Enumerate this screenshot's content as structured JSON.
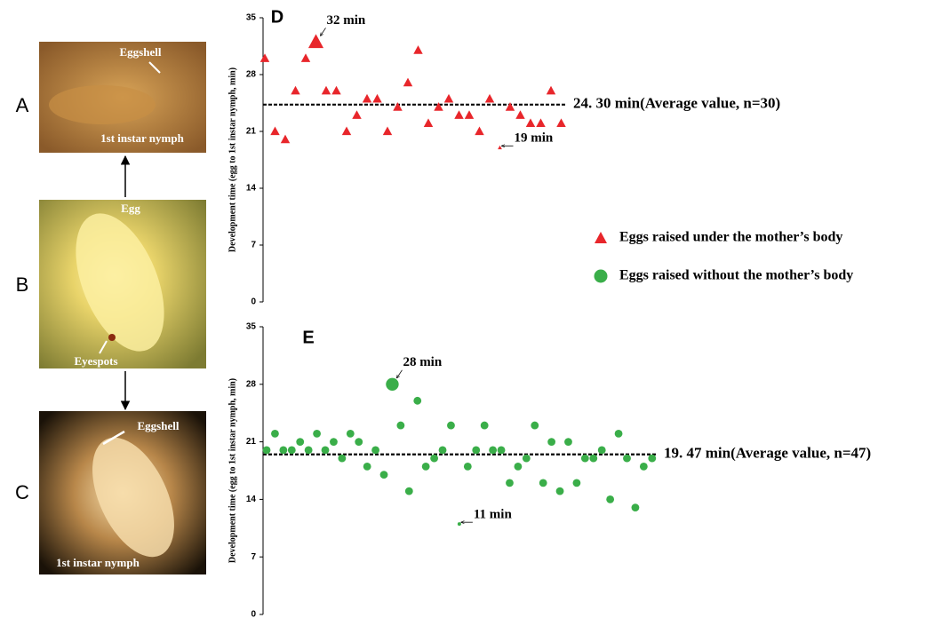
{
  "figure": {
    "panels": [
      {
        "letter": "A",
        "labels": [
          "Eggshell",
          "1st instar nymph"
        ]
      },
      {
        "letter": "B",
        "labels": [
          "Egg",
          "Eyespots"
        ]
      },
      {
        "letter": "C",
        "labels": [
          "Eggshell",
          "1st instar nymph"
        ]
      }
    ]
  },
  "chart_data": [
    {
      "type": "scatter",
      "title": "D",
      "ylabel": "Development time (egg to 1st instar nymph, min)",
      "ylim": [
        0,
        35
      ],
      "yticks": [
        0,
        7,
        14,
        21,
        28,
        35
      ],
      "series": [
        {
          "name": "Eggs raised under the mother’s body",
          "color": "#e8262b",
          "marker": "triangle",
          "values": [
            30,
            21,
            20,
            26,
            30,
            32,
            26,
            26,
            21,
            23,
            25,
            25,
            21,
            24,
            27,
            31,
            22,
            24,
            25,
            23,
            23,
            21,
            25,
            19,
            24,
            23,
            22,
            22,
            26,
            22
          ]
        }
      ],
      "mean": 24.3,
      "mean_label": "24. 30 min(Average value, n=30)",
      "annotations": [
        {
          "text": "32 min",
          "value": 32
        },
        {
          "text": "19 min",
          "value": 19
        }
      ]
    },
    {
      "type": "scatter",
      "title": "E",
      "ylabel": "Development time (egg to 1st instar nymph, min)",
      "ylim": [
        0,
        35
      ],
      "yticks": [
        0,
        7,
        14,
        21,
        28,
        35
      ],
      "series": [
        {
          "name": "Eggs raised without the mother’s body",
          "color": "#3aae49",
          "marker": "circle",
          "values": [
            20,
            22,
            20,
            20,
            21,
            20,
            22,
            20,
            21,
            19,
            22,
            21,
            18,
            20,
            17,
            28,
            23,
            15,
            26,
            18,
            19,
            20,
            23,
            11,
            18,
            20,
            23,
            20,
            20,
            16,
            18,
            19,
            23,
            16,
            21,
            15,
            21,
            16,
            19,
            19,
            20,
            14,
            22,
            19,
            13,
            18,
            19
          ]
        }
      ],
      "mean": 19.47,
      "mean_label": "19. 47 min(Average value, n=47)",
      "annotations": [
        {
          "text": "28 min",
          "value": 28
        },
        {
          "text": "11 min",
          "value": 11
        }
      ]
    }
  ]
}
